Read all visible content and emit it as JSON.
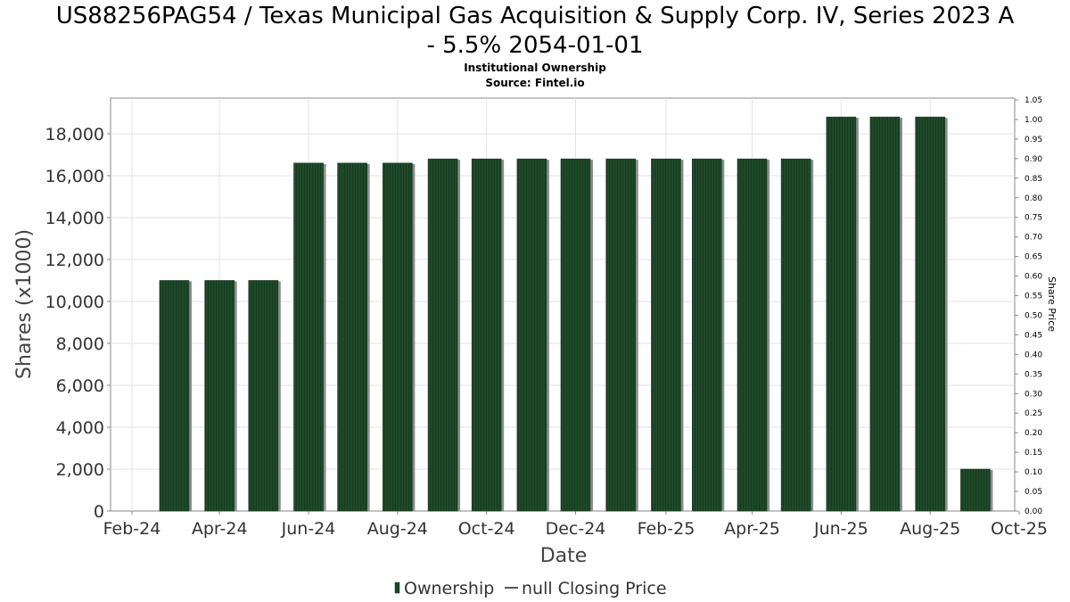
{
  "chart_data": {
    "type": "bar",
    "title": "US88256PAG54 / Texas Municipal Gas Acquisition & Supply Corp. IV, Series 2023 A - 5.5% 2054-01-01",
    "title_lines": [
      "US88256PAG54 / Texas Municipal Gas Acquisition & Supply Corp. IV, Series 2023 A",
      "- 5.5% 2054-01-01"
    ],
    "subtitle": "Institutional Ownership",
    "source": "Source: Fintel.io",
    "xlabel": "Date",
    "ylabel": "Shares (x1000)",
    "y2label": "Share Price",
    "ylim": [
      0,
      19700
    ],
    "y2lim": [
      0,
      1.05
    ],
    "y_ticks": [
      "0",
      "2,000",
      "4,000",
      "6,000",
      "8,000",
      "10,000",
      "12,000",
      "14,000",
      "16,000",
      "18,000"
    ],
    "y_tick_values": [
      0,
      2000,
      4000,
      6000,
      8000,
      10000,
      12000,
      14000,
      16000,
      18000
    ],
    "y2_ticks": [
      "0.00",
      "0.05",
      "0.10",
      "0.15",
      "0.20",
      "0.25",
      "0.30",
      "0.35",
      "0.40",
      "0.45",
      "0.50",
      "0.55",
      "0.60",
      "0.65",
      "0.70",
      "0.75",
      "0.80",
      "0.85",
      "0.90",
      "0.95",
      "1.00",
      "1.05"
    ],
    "x_ticks": [
      "Feb-24",
      "Apr-24",
      "Jun-24",
      "Aug-24",
      "Oct-24",
      "Dec-24",
      "Feb-25",
      "Apr-25",
      "Jun-25",
      "Aug-25",
      "Oct-25"
    ],
    "x_range": [
      "2024-02-01",
      "2025-10-01"
    ],
    "grid": true,
    "legend_position": "bottom-center",
    "series": [
      {
        "name": "Ownership",
        "color": "#1f4a2a",
        "points": [
          {
            "date": "2024-03-01",
            "value": 11000
          },
          {
            "date": "2024-04-01",
            "value": 11000
          },
          {
            "date": "2024-05-01",
            "value": 11000
          },
          {
            "date": "2024-06-01",
            "value": 16600
          },
          {
            "date": "2024-07-01",
            "value": 16600
          },
          {
            "date": "2024-08-01",
            "value": 16600
          },
          {
            "date": "2024-09-01",
            "value": 16800
          },
          {
            "date": "2024-10-01",
            "value": 16800
          },
          {
            "date": "2024-11-01",
            "value": 16800
          },
          {
            "date": "2024-12-01",
            "value": 16800
          },
          {
            "date": "2025-01-01",
            "value": 16800
          },
          {
            "date": "2025-02-01",
            "value": 16800
          },
          {
            "date": "2025-03-01",
            "value": 16800
          },
          {
            "date": "2025-04-01",
            "value": 16800
          },
          {
            "date": "2025-05-01",
            "value": 16800
          },
          {
            "date": "2025-06-01",
            "value": 18800
          },
          {
            "date": "2025-07-01",
            "value": 18800
          },
          {
            "date": "2025-08-01",
            "value": 18800
          },
          {
            "date": "2025-09-01",
            "value": 2000
          }
        ]
      }
    ],
    "legend": [
      {
        "label": "Ownership",
        "symbol": "bar",
        "color": "#1f4a2a"
      },
      {
        "label": "null Closing Price",
        "symbol": "line",
        "color": "#555555"
      }
    ]
  }
}
